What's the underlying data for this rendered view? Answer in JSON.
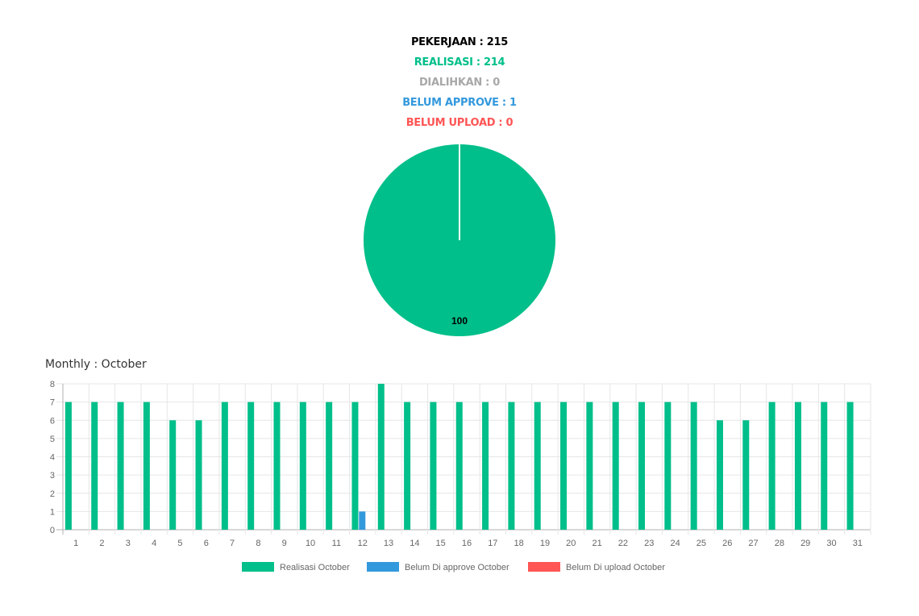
{
  "summary": {
    "pekerjaan": "PEKERJAAN : 215",
    "realisasi": "REALISASI : 214",
    "dialihkan": "DIALIHKAN : 0",
    "belum_approve": "BELUM APPROVE : 1",
    "belum_upload": "BELUM UPLOAD : 0"
  },
  "colors": {
    "pekerjaan": "#000000",
    "realisasi": "#00bf8a",
    "dialihkan": "#a8a8a8",
    "belum_approve": "#3399dd",
    "belum_upload": "#ff5555"
  },
  "monthly_title": "Monthly : October",
  "chart_data": [
    {
      "type": "pie",
      "slices": [
        {
          "value": 100,
          "label": "100",
          "color": "#00bf8a"
        }
      ],
      "title": ""
    },
    {
      "type": "bar",
      "categories": [
        "1",
        "2",
        "3",
        "4",
        "5",
        "6",
        "7",
        "8",
        "9",
        "10",
        "11",
        "12",
        "13",
        "14",
        "15",
        "16",
        "17",
        "18",
        "19",
        "20",
        "21",
        "22",
        "23",
        "24",
        "25",
        "26",
        "27",
        "28",
        "29",
        "30",
        "31"
      ],
      "series": [
        {
          "name": "Realisasi October",
          "color": "#00bf8a",
          "values": [
            7,
            7,
            7,
            7,
            6,
            6,
            7,
            7,
            7,
            7,
            7,
            7,
            8,
            7,
            7,
            7,
            7,
            7,
            7,
            7,
            7,
            7,
            7,
            7,
            7,
            6,
            6,
            7,
            7,
            7,
            7
          ]
        },
        {
          "name": "Belum Di approve October",
          "color": "#3399dd",
          "values": [
            0,
            0,
            0,
            0,
            0,
            0,
            0,
            0,
            0,
            0,
            0,
            1,
            0,
            0,
            0,
            0,
            0,
            0,
            0,
            0,
            0,
            0,
            0,
            0,
            0,
            0,
            0,
            0,
            0,
            0,
            0
          ]
        },
        {
          "name": "Belum Di upload October",
          "color": "#ff5555",
          "values": [
            0,
            0,
            0,
            0,
            0,
            0,
            0,
            0,
            0,
            0,
            0,
            0,
            0,
            0,
            0,
            0,
            0,
            0,
            0,
            0,
            0,
            0,
            0,
            0,
            0,
            0,
            0,
            0,
            0,
            0,
            0
          ]
        }
      ],
      "ylim": [
        0,
        8
      ],
      "yticks": [
        0,
        1,
        2,
        3,
        4,
        5,
        6,
        7,
        8
      ],
      "grid": true,
      "legend": "bottom"
    }
  ]
}
